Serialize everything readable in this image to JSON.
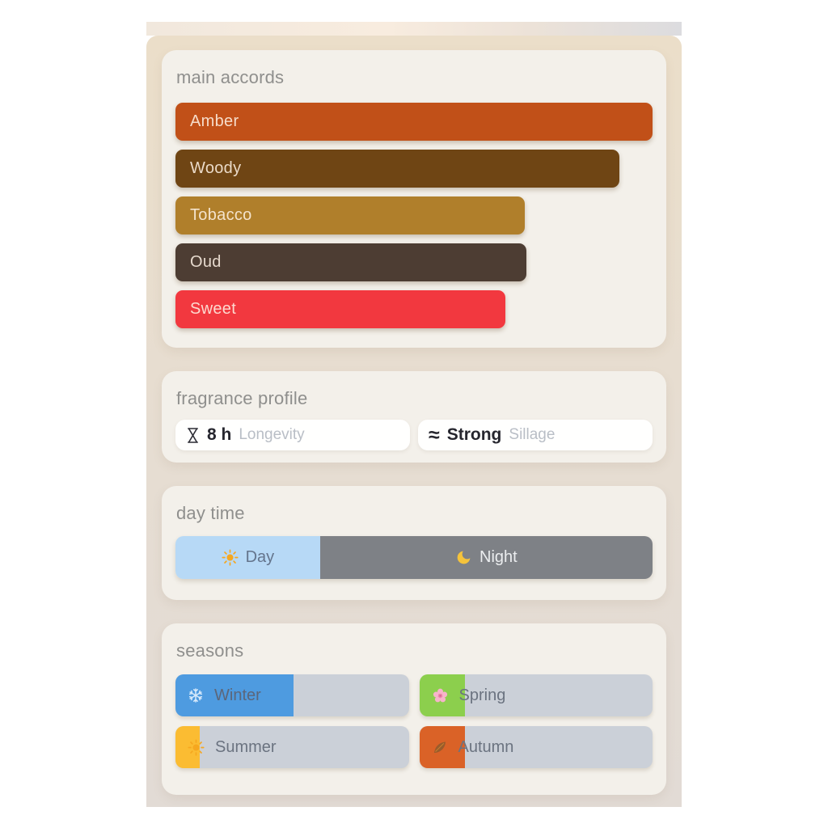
{
  "theme": {
    "page_bg": "#ffffff",
    "sheet_top": "#ebdec9",
    "sheet_bottom": "#e2dbd5",
    "card_bg": "#f3f0ea",
    "season_track": "#cbd0d8",
    "title_color": "#8f8f8d"
  },
  "main_accords": {
    "title": "main accords",
    "accords": [
      {
        "label": "Amber",
        "color": "#c15018",
        "width_pct": 100
      },
      {
        "label": "Woody",
        "color": "#6f4514",
        "width_pct": 93
      },
      {
        "label": "Tobacco",
        "color": "#b07f2b",
        "width_pct": 73.3
      },
      {
        "label": "Oud",
        "color": "#4d3d33",
        "width_pct": 73.5
      },
      {
        "label": "Sweet",
        "color": "#f2383f",
        "width_pct": 69.2
      }
    ]
  },
  "fragrance_profile": {
    "title": "fragrance profile",
    "longevity": {
      "icon": "hourglass-icon",
      "value": "8 h",
      "label": "Longevity"
    },
    "sillage": {
      "symbol": "≈",
      "value": "Strong",
      "label": "Sillage"
    }
  },
  "day_time": {
    "title": "day time",
    "segments": [
      {
        "label": "Day",
        "icon": "sun-icon",
        "width_pct": 30.3,
        "color": "#b7d9f6",
        "text_color": "#64748c"
      },
      {
        "label": "Night",
        "icon": "moon-icon",
        "width_pct": 69.7,
        "color": "#7e8186",
        "text_color": "#ebedef"
      }
    ]
  },
  "seasons": {
    "title": "seasons",
    "items": [
      {
        "label": "Winter",
        "icon": "snowflake-icon",
        "fill_pct": 50.5,
        "color": "#4e9be0",
        "text_color": "#5c667a"
      },
      {
        "label": "Spring",
        "icon": "blossom-icon",
        "fill_pct": 19.5,
        "color": "#8ccf4d",
        "text_color": "#6b7380"
      },
      {
        "label": "Summer",
        "icon": "sun-icon",
        "fill_pct": 10.5,
        "color": "#fbbc32",
        "text_color": "#6b7380"
      },
      {
        "label": "Autumn",
        "icon": "leaf-icon",
        "fill_pct": 19.5,
        "color": "#da6227",
        "text_color": "#6b7380"
      }
    ]
  }
}
